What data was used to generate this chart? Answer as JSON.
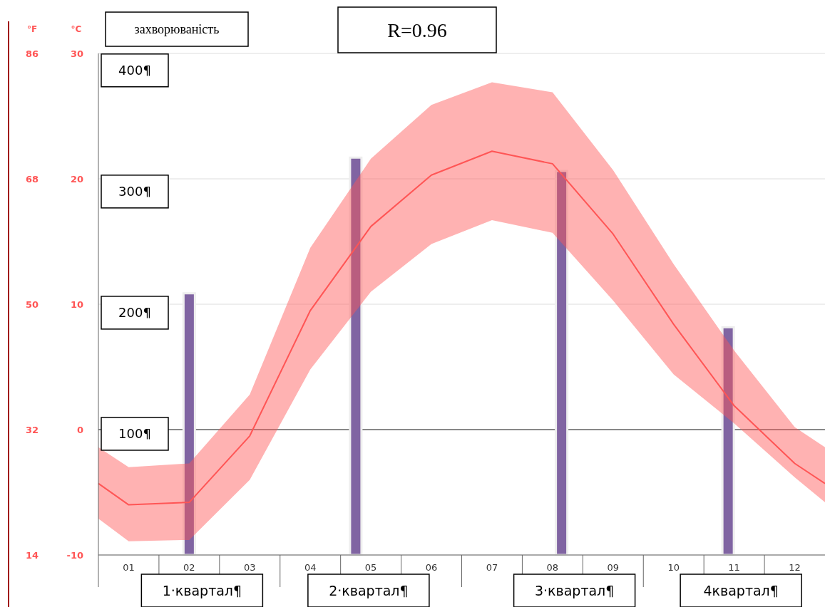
{
  "chart_data": {
    "type": "line",
    "ylabel": "°C",
    "y2label": "°F",
    "y3label": "захворюваність",
    "x": [
      0.5,
      1,
      2,
      3,
      4,
      5,
      6,
      7,
      8,
      9,
      10,
      11,
      12,
      12.5
    ],
    "xlim": [
      0.5,
      12.5
    ],
    "xticks": [
      {
        "value": 1,
        "label": "01"
      },
      {
        "value": 2,
        "label": "02"
      },
      {
        "value": 3,
        "label": "03"
      },
      {
        "value": 4,
        "label": "04"
      },
      {
        "value": 5,
        "label": "05"
      },
      {
        "value": 6,
        "label": "06"
      },
      {
        "value": 7,
        "label": "07"
      },
      {
        "value": 8,
        "label": "08"
      },
      {
        "value": 9,
        "label": "09"
      },
      {
        "value": 10,
        "label": "10"
      },
      {
        "value": 11,
        "label": "11"
      },
      {
        "value": 12,
        "label": "12"
      }
    ],
    "ylim": [
      -10,
      30
    ],
    "yticks": [
      -10,
      0,
      10,
      20,
      30
    ],
    "y2lim": [
      14,
      86
    ],
    "y2ticks": [
      14,
      32,
      50,
      68,
      86
    ],
    "y3lim": [
      0,
      414
    ],
    "y3ticks": [
      {
        "value": 100,
        "label": "100¶"
      },
      {
        "value": 200,
        "label": "200¶"
      },
      {
        "value": 300,
        "label": "300¶"
      },
      {
        "value": 400,
        "label": "400¶"
      }
    ],
    "grid": "y",
    "marker": "none",
    "line_style": "solid",
    "ref_lines": [
      {
        "axis": "y",
        "value": 0,
        "color": "#666666"
      }
    ],
    "series": [
      {
        "color": "#ff5555",
        "values": [
          -4.3,
          -6.0,
          -5.8,
          -0.5,
          9.5,
          16.2,
          20.3,
          22.2,
          21.2,
          15.6,
          8.4,
          1.9,
          -2.7,
          -4.3
        ],
        "lower": [
          -7.1,
          -8.9,
          -8.8,
          -4.0,
          4.8,
          11.0,
          14.8,
          16.7,
          15.7,
          10.3,
          4.4,
          0.5,
          -3.8,
          -5.8
        ],
        "upper": [
          -1.4,
          -3.0,
          -2.7,
          2.8,
          14.5,
          21.6,
          25.9,
          27.7,
          26.9,
          20.7,
          13.2,
          6.3,
          0.2,
          -1.4
        ]
      },
      {
        "type": "bar",
        "axis": "y3",
        "color": "#8064a2",
        "x": [
          2,
          4.75,
          8.15,
          10.9
        ],
        "values": [
          216,
          328,
          317,
          188
        ]
      }
    ],
    "annotations": [
      "R=0.96",
      "1·квартал¶",
      "2·квартал¶",
      "3·квартал¶",
      "4квартал¶"
    ]
  }
}
